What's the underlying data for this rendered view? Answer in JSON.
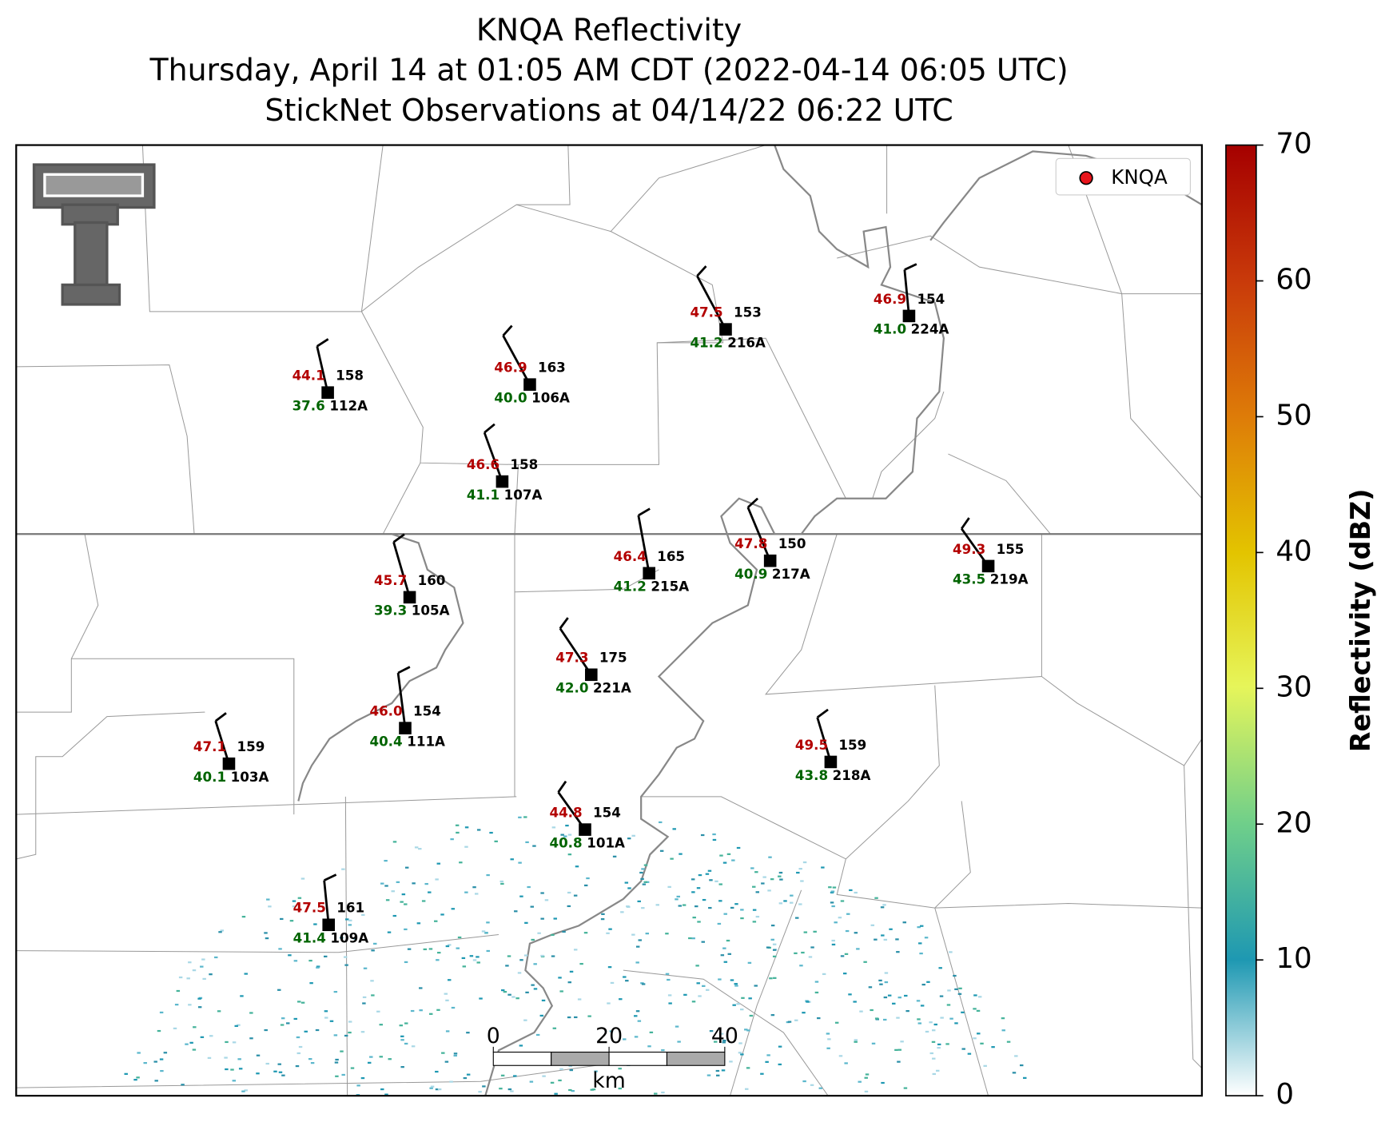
{
  "title": [
    "KNQA Reflectivity",
    "Thursday, April 14 at 01:05 AM CDT (2022-04-14 06:05 UTC)",
    "StickNet Observations at 04/14/22 06:22 UTC"
  ],
  "legend": {
    "label": "KNQA",
    "color": "#e8141b"
  },
  "colorbar": {
    "label": "Reflectivity (dBZ)",
    "lim": [
      0,
      70
    ],
    "ticks": [
      0,
      10,
      20,
      30,
      40,
      50,
      60,
      70
    ]
  },
  "scale_bar": {
    "lim": [
      0,
      40
    ],
    "ticks": [
      0,
      20,
      40
    ],
    "unit": "km"
  },
  "stations": [
    {
      "id": "112A",
      "temperature": "44.1",
      "dewpoint": "37.6",
      "pressure": 158
    },
    {
      "id": "106A",
      "temperature": "46.9",
      "dewpoint": "40.0",
      "pressure": 163
    },
    {
      "id": "216A",
      "temperature": "47.5",
      "dewpoint": "41.2",
      "pressure": 153
    },
    {
      "id": "224A",
      "temperature": "46.9",
      "dewpoint": "41.0",
      "pressure": 154
    },
    {
      "id": "107A",
      "temperature": "46.6",
      "dewpoint": "41.1",
      "pressure": 158
    },
    {
      "id": "215A",
      "temperature": "46.4",
      "dewpoint": "41.2",
      "pressure": 165
    },
    {
      "id": "217A",
      "temperature": "47.8",
      "dewpoint": "40.9",
      "pressure": 150
    },
    {
      "id": "219A",
      "temperature": "49.3",
      "dewpoint": "43.5",
      "pressure": 155
    },
    {
      "id": "105A",
      "temperature": "45.7",
      "dewpoint": "39.3",
      "pressure": 160
    },
    {
      "id": "221A",
      "temperature": "47.3",
      "dewpoint": "42.0",
      "pressure": 175
    },
    {
      "id": "111A",
      "temperature": "46.0",
      "dewpoint": "40.4",
      "pressure": 154
    },
    {
      "id": "103A",
      "temperature": "47.1",
      "dewpoint": "40.1",
      "pressure": 159
    },
    {
      "id": "218A",
      "temperature": "49.5",
      "dewpoint": "43.8",
      "pressure": 159
    },
    {
      "id": "101A",
      "temperature": "44.8",
      "dewpoint": "40.8",
      "pressure": 154
    },
    {
      "id": "109A",
      "temperature": "47.5",
      "dewpoint": "41.4",
      "pressure": 161
    }
  ]
}
